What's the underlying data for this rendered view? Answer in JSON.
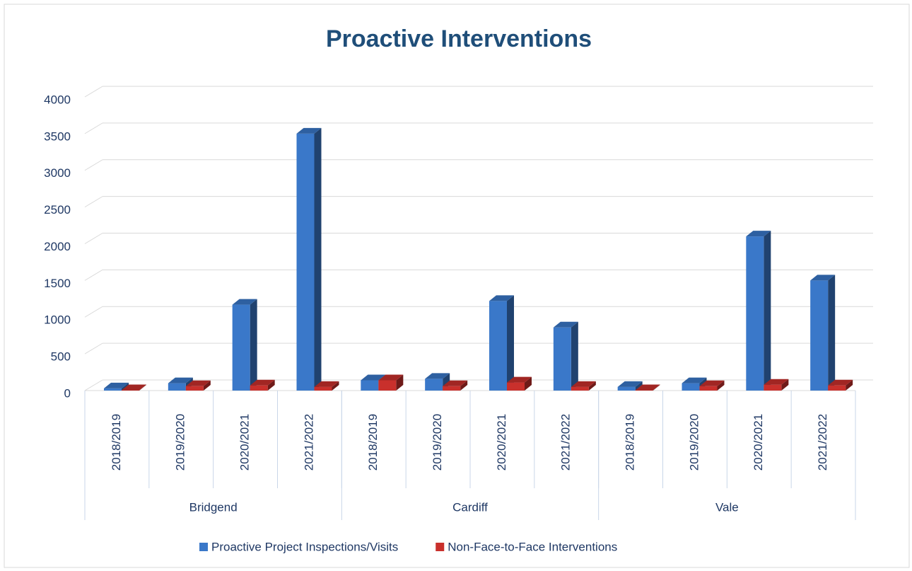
{
  "chart_data": {
    "type": "bar3d",
    "title": "Proactive Interventions",
    "groups": [
      "Bridgend",
      "Cardiff",
      "Vale"
    ],
    "categories": [
      "2018/2019",
      "2019/2020",
      "2020/2021",
      "2021/2022",
      "2018/2019",
      "2019/2020",
      "2020/2021",
      "2021/2022",
      "2018/2019",
      "2019/2020",
      "2020/2021",
      "2021/2022"
    ],
    "series": [
      {
        "name": "Proactive Project Inspections/Visits",
        "color": "#3a78c9",
        "values": [
          30,
          100,
          1170,
          3500,
          140,
          160,
          1220,
          860,
          50,
          100,
          2100,
          1500
        ]
      },
      {
        "name": "Non-Face-to-Face Interventions",
        "color": "#c9302c",
        "values": [
          5,
          60,
          70,
          50,
          140,
          60,
          110,
          50,
          5,
          60,
          80,
          70
        ]
      }
    ],
    "ylim": [
      0,
      4000
    ],
    "yticks": [
      0,
      500,
      1000,
      1500,
      2000,
      2500,
      3000,
      3500,
      4000
    ],
    "grid": true,
    "legend": "bottom"
  }
}
